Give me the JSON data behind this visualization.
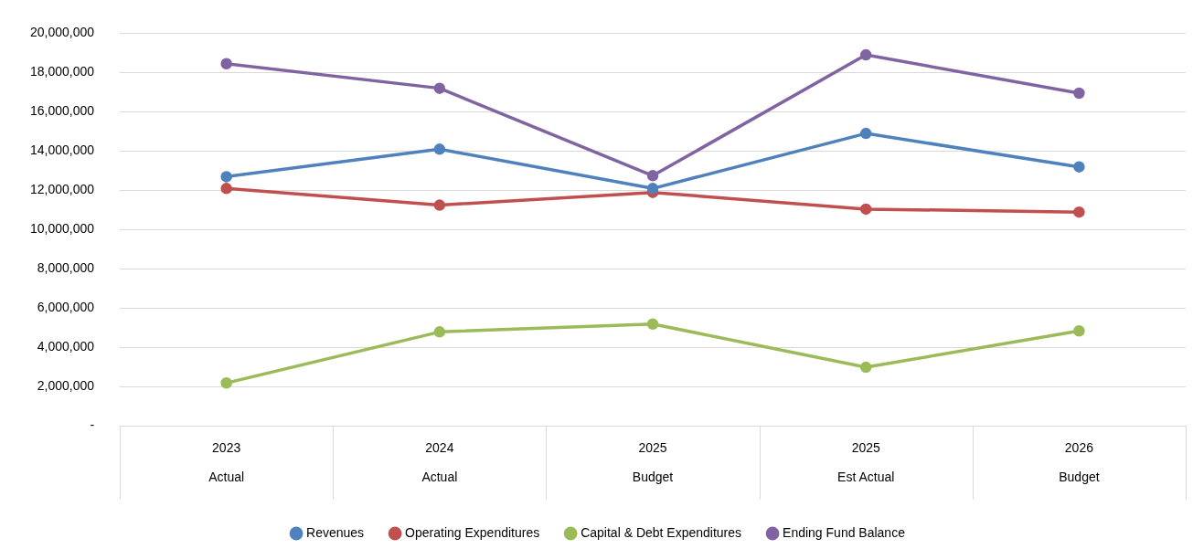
{
  "chart_data": {
    "type": "line",
    "categories": [
      "2023\nActual",
      "2024\nActual",
      "2025\nBudget",
      "2025\nEst Actual",
      "2026\nBudget"
    ],
    "series": [
      {
        "name": "Revenues",
        "color": "#4f81bd",
        "values": [
          12700000,
          14100000,
          12100000,
          14900000,
          13200000
        ]
      },
      {
        "name": "Operating Expenditures",
        "color": "#c0504d",
        "values": [
          12100000,
          11250000,
          11900000,
          11050000,
          10900000
        ]
      },
      {
        "name": "Capital & Debt Expenditures",
        "color": "#9bbb59",
        "values": [
          2200000,
          4800000,
          5200000,
          3000000,
          4850000
        ]
      },
      {
        "name": "Ending Fund Balance",
        "color": "#8064a2",
        "values": [
          18450000,
          17200000,
          12750000,
          18900000,
          16950000
        ]
      }
    ],
    "ylim": [
      0,
      20000000
    ],
    "yticks": [
      {
        "value": 0,
        "label": "-"
      },
      {
        "value": 2000000,
        "label": "2,000,000"
      },
      {
        "value": 4000000,
        "label": "4,000,000"
      },
      {
        "value": 6000000,
        "label": "6,000,000"
      },
      {
        "value": 8000000,
        "label": "8,000,000"
      },
      {
        "value": 10000000,
        "label": "10,000,000"
      },
      {
        "value": 12000000,
        "label": "12,000,000"
      },
      {
        "value": 14000000,
        "label": "14,000,000"
      },
      {
        "value": 16000000,
        "label": "16,000,000"
      },
      {
        "value": 18000000,
        "label": "18,000,000"
      },
      {
        "value": 20000000,
        "label": "20,000,000"
      }
    ],
    "grid": "y",
    "legend": "bottom",
    "marker": "circle",
    "line_style": "solid"
  }
}
